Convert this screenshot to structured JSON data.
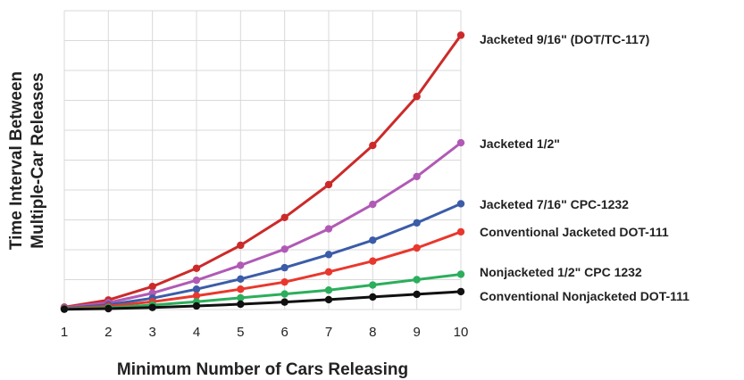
{
  "chart_data": {
    "type": "line",
    "title": "",
    "xlabel": "Minimum Number of Cars Releasing",
    "ylabel": [
      "Time Interval Between",
      "Multiple-Car Releases"
    ],
    "x": [
      1,
      2,
      3,
      4,
      5,
      6,
      7,
      8,
      9,
      10
    ],
    "xlim": [
      1,
      10
    ],
    "ylim": [
      0,
      100
    ],
    "y_tick_labels_shown": false,
    "grid": true,
    "legend": "inline labels at right end of each line",
    "series": [
      {
        "name": "Jacketed 9/16\" (DOT/TC-117)",
        "color": "#cc2a2a",
        "values": [
          0.8,
          3.2,
          7.7,
          13.8,
          21.5,
          30.8,
          41.8,
          54.9,
          71.3,
          91.8
        ]
      },
      {
        "name": "Jacketed 1/2\"",
        "color": "#b05ab5",
        "values": [
          0.6,
          2.3,
          5.5,
          9.8,
          14.8,
          20.2,
          27.0,
          35.2,
          44.5,
          55.8
        ]
      },
      {
        "name": "Jacketed 7/16\" CPC-1232",
        "color": "#3b5ca8",
        "values": [
          0.4,
          1.6,
          3.8,
          6.8,
          10.2,
          14.0,
          18.4,
          23.2,
          29.0,
          35.4
        ]
      },
      {
        "name": "Conventional Jacketed DOT-111",
        "color": "#e8382e",
        "values": [
          0.3,
          1.1,
          2.6,
          4.6,
          6.8,
          9.2,
          12.6,
          16.2,
          20.6,
          26.0
        ]
      },
      {
        "name": "Nonjacketed 1/2\" CPC 1232",
        "color": "#2cae5c",
        "values": [
          0.2,
          0.6,
          1.5,
          2.6,
          3.9,
          5.2,
          6.5,
          8.2,
          10.0,
          11.8
        ]
      },
      {
        "name": "Conventional Nonjacketed DOT-111",
        "color": "#111111",
        "values": [
          0.1,
          0.3,
          0.7,
          1.2,
          1.8,
          2.5,
          3.3,
          4.2,
          5.1,
          6.0
        ]
      }
    ]
  }
}
